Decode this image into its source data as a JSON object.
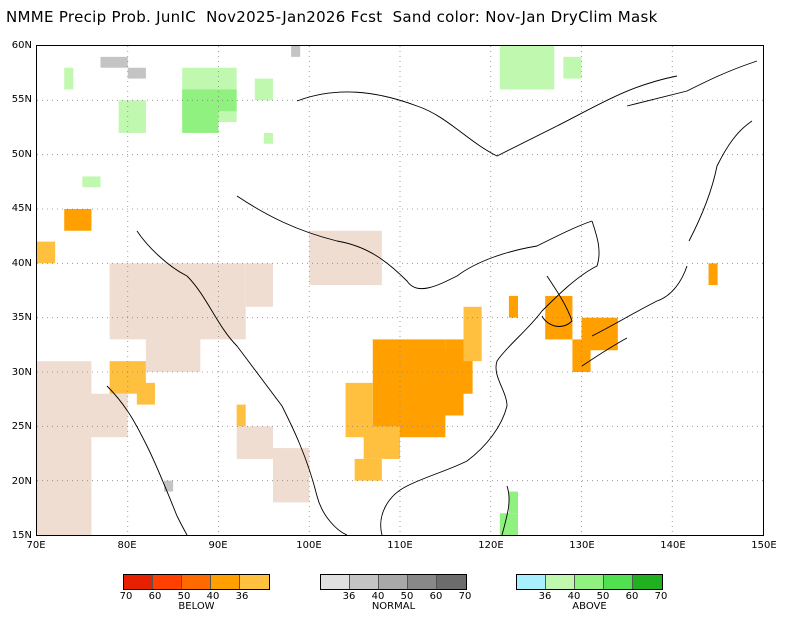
{
  "title": "NMME Precip Prob. JunIC  Nov2025-Jan2026 Fcst  Sand color: Nov-Jan DryClim Mask",
  "lat_labels": [
    "60N",
    "55N",
    "50N",
    "45N",
    "40N",
    "35N",
    "30N",
    "25N",
    "20N",
    "15N"
  ],
  "lon_labels": [
    "70E",
    "80E",
    "90E",
    "100E",
    "110E",
    "120E",
    "130E",
    "140E",
    "150E"
  ],
  "map_extent": {
    "lon": [
      70,
      150
    ],
    "lat": [
      15,
      60
    ]
  },
  "colors": {
    "below": [
      "#e62000",
      "#ff4000",
      "#ff6a00",
      "#ffa000",
      "#ffc040"
    ],
    "normal": [
      "#e0e0e0",
      "#c4c4c4",
      "#a8a8a8",
      "#888888",
      "#6c6c6c"
    ],
    "above": [
      "#a8f0ff",
      "#c0f8b0",
      "#90f080",
      "#50e050",
      "#20b020"
    ],
    "sand": "#f0ddd2"
  },
  "legend": {
    "below": {
      "label": "BELOW",
      "ticks": [
        "70",
        "60",
        "50",
        "40",
        "36"
      ]
    },
    "normal": {
      "label": "NORMAL",
      "ticks": [
        "36",
        "40",
        "50",
        "60",
        "70"
      ]
    },
    "above": {
      "label": "ABOVE",
      "ticks": [
        "36",
        "40",
        "50",
        "60",
        "70"
      ]
    }
  }
}
